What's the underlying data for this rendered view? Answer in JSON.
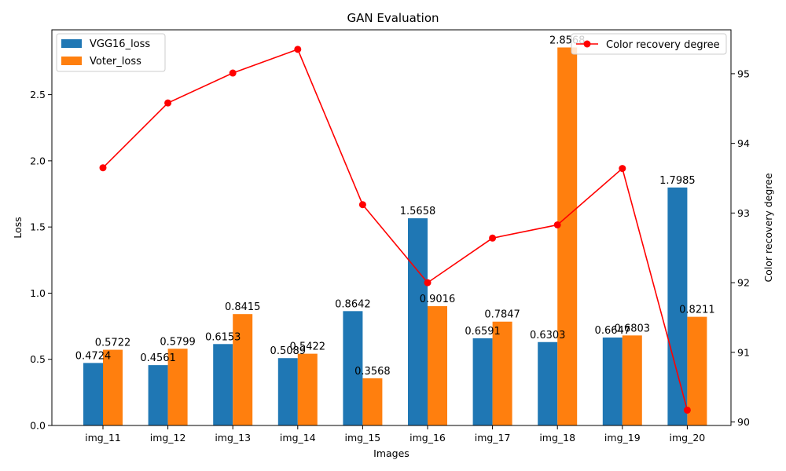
{
  "chart_data": {
    "type": "bar",
    "title": "GAN Evaluation",
    "xlabel": "Images",
    "ylabel": "Loss",
    "y2label": "Color recovery degree",
    "categories": [
      "img_11",
      "img_12",
      "img_13",
      "img_14",
      "img_15",
      "img_16",
      "img_17",
      "img_18",
      "img_19",
      "img_20"
    ],
    "series": [
      {
        "name": "VGG16_loss",
        "type": "bar",
        "axis": "left",
        "color": "#1f77b4",
        "values": [
          0.4724,
          0.4561,
          0.6153,
          0.5089,
          0.8642,
          1.5658,
          0.6591,
          0.6303,
          0.6647,
          1.7985
        ],
        "labels": [
          "0.4724",
          "0.4561",
          "0.6153",
          "0.5089",
          "0.8642",
          "1.5658",
          "0.6591",
          "0.6303",
          "0.6647",
          "1.7985"
        ]
      },
      {
        "name": "Voter_loss",
        "type": "bar",
        "axis": "left",
        "color": "#ff7f0e",
        "values": [
          0.5722,
          0.5799,
          0.8415,
          0.5422,
          0.3568,
          0.9016,
          0.7847,
          2.8568,
          0.6803,
          0.8211
        ],
        "labels": [
          "0.5722",
          "0.5799",
          "0.8415",
          "0.5422",
          "0.3568",
          "0.9016",
          "0.7847",
          "2.8568",
          "0.6803",
          "0.8211"
        ]
      },
      {
        "name": "Color recovery degree",
        "type": "line",
        "axis": "right",
        "color": "#ff0000",
        "values": [
          93.65,
          94.58,
          95.01,
          95.35,
          93.12,
          92.0,
          92.64,
          92.83,
          93.64,
          90.17
        ]
      }
    ],
    "ylim": [
      0,
      2.99
    ],
    "y2lim": [
      89.95,
      95.63
    ],
    "yticks": [
      "0.0",
      "0.5",
      "1.0",
      "1.5",
      "2.0",
      "2.5"
    ],
    "y2ticks": [
      "90",
      "91",
      "92",
      "93",
      "94",
      "95"
    ],
    "legend_left": "upper-left",
    "legend_right": "upper-right",
    "grid": false
  }
}
